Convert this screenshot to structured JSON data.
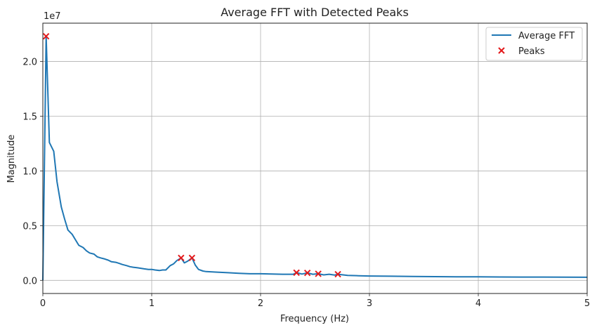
{
  "chart_data": {
    "type": "line",
    "title": "Average FFT with Detected Peaks",
    "xlabel": "Frequency (Hz)",
    "ylabel": "Magnitude",
    "y_scale_label": "1e7",
    "xlim": [
      0,
      5
    ],
    "ylim": [
      -1200000,
      23500000
    ],
    "grid": true,
    "legend_position": "top-right",
    "x_ticks": [
      0,
      1,
      2,
      3,
      4,
      5
    ],
    "x_tick_labels": [
      "0",
      "1",
      "2",
      "3",
      "4",
      "5"
    ],
    "y_ticks": [
      0,
      5000000,
      10000000,
      15000000,
      20000000
    ],
    "y_tick_labels": [
      "0.0",
      "0.5",
      "1.0",
      "1.5",
      "2.0"
    ],
    "series": [
      {
        "name": "Average FFT",
        "kind": "line",
        "color": "#1f77b4",
        "x": [
          0.0,
          0.03,
          0.06,
          0.1,
          0.13,
          0.17,
          0.2,
          0.23,
          0.27,
          0.3,
          0.33,
          0.37,
          0.4,
          0.43,
          0.47,
          0.5,
          0.53,
          0.57,
          0.6,
          0.63,
          0.67,
          0.7,
          0.73,
          0.77,
          0.8,
          0.83,
          0.87,
          0.9,
          0.93,
          0.97,
          1.0,
          1.03,
          1.07,
          1.1,
          1.13,
          1.17,
          1.2,
          1.23,
          1.27,
          1.3,
          1.33,
          1.37,
          1.4,
          1.43,
          1.47,
          1.5,
          1.6,
          1.7,
          1.8,
          1.9,
          2.0,
          2.1,
          2.2,
          2.3,
          2.33,
          2.38,
          2.43,
          2.48,
          2.53,
          2.58,
          2.63,
          2.68,
          2.71,
          2.8,
          2.9,
          3.0,
          3.2,
          3.4,
          3.6,
          3.8,
          4.0,
          4.2,
          4.4,
          4.6,
          4.8,
          5.0
        ],
        "values": [
          0,
          22300000,
          12600000,
          11800000,
          9000000,
          6700000,
          5600000,
          4600000,
          4200000,
          3700000,
          3200000,
          3000000,
          2700000,
          2500000,
          2400000,
          2150000,
          2050000,
          1950000,
          1850000,
          1700000,
          1650000,
          1550000,
          1450000,
          1350000,
          1250000,
          1200000,
          1150000,
          1100000,
          1050000,
          1000000,
          1000000,
          950000,
          900000,
          950000,
          950000,
          1350000,
          1500000,
          1800000,
          2050000,
          1600000,
          1750000,
          2050000,
          1400000,
          1000000,
          850000,
          800000,
          750000,
          700000,
          650000,
          600000,
          600000,
          580000,
          560000,
          560000,
          700000,
          580000,
          680000,
          560000,
          600000,
          500000,
          560000,
          480000,
          560000,
          450000,
          420000,
          400000,
          380000,
          360000,
          340000,
          330000,
          320000,
          310000,
          300000,
          300000,
          290000,
          280000
        ]
      },
      {
        "name": "Peaks",
        "kind": "scatter",
        "marker": "x",
        "color": "#e31a1c",
        "x": [
          0.03,
          1.27,
          1.37,
          2.33,
          2.43,
          2.53,
          2.71
        ],
        "values": [
          22300000,
          2050000,
          2050000,
          700000,
          680000,
          600000,
          560000
        ]
      }
    ]
  }
}
